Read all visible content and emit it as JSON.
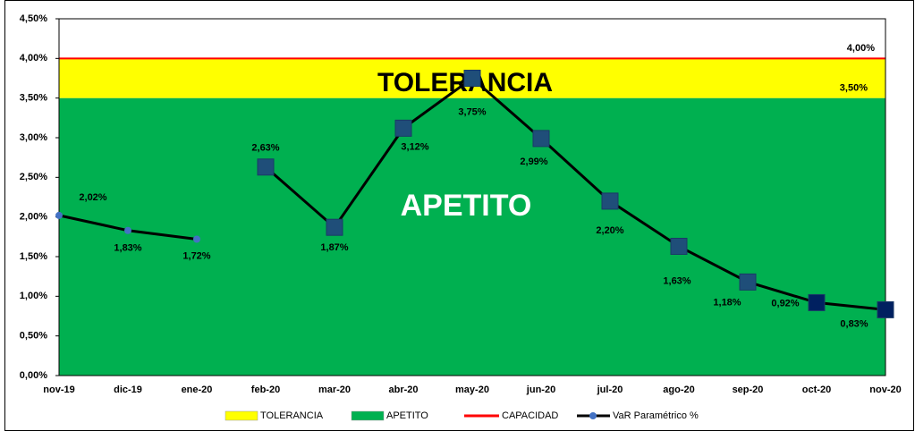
{
  "chart_data": {
    "type": "line",
    "categories": [
      "nov-19",
      "dic-19",
      "ene-20",
      "feb-20",
      "mar-20",
      "abr-20",
      "may-20",
      "jun-20",
      "jul-20",
      "ago-20",
      "sep-20",
      "oct-20",
      "nov-20"
    ],
    "series": [
      {
        "name": "VaR Paramétrico %",
        "color": "#000000",
        "values": [
          2.02,
          1.83,
          1.72,
          2.63,
          1.87,
          3.12,
          3.75,
          2.99,
          2.2,
          1.63,
          1.18,
          0.92,
          0.83
        ],
        "value_labels": [
          "2,02%",
          "1,83%",
          "1,72%",
          "2,63%",
          "1,87%",
          "3,12%",
          "3,75%",
          "2,99%",
          "2,20%",
          "1,63%",
          "1,18%",
          "0,92%",
          "0,83%"
        ],
        "markers": [
          "circle",
          "circle",
          "circle",
          "square",
          "square",
          "square",
          "square",
          "square",
          "square",
          "square",
          "square",
          "square",
          "square"
        ],
        "marker_colors": [
          "#4472c4",
          "#4472c4",
          "#4472c4",
          "#1f4e79",
          "#1f4e79",
          "#1f4e79",
          "#1f4e79",
          "#1f4e79",
          "#1f4e79",
          "#1f4e79",
          "#1f4e79",
          "#002060",
          "#002060"
        ],
        "line_breaks": [
          2
        ]
      }
    ],
    "apetito": {
      "name": "APETITO",
      "color": "#00b050",
      "value": 3.5,
      "label": "3,50%"
    },
    "tolerancia": {
      "name": "TOLERANCIA",
      "color": "#ffff00"
    },
    "capacidad": {
      "name": "CAPACIDAD",
      "color": "#ff0000",
      "value": 4,
      "label": "4,00%"
    },
    "ylim": [
      0,
      4.5
    ],
    "yticks": [
      {
        "value": 0,
        "label": "0,00%"
      },
      {
        "value": 0.5,
        "label": "0,50%"
      },
      {
        "value": 1,
        "label": "1,00%"
      },
      {
        "value": 1.5,
        "label": "1,50%"
      },
      {
        "value": 2,
        "label": "2,00%"
      },
      {
        "value": 2.5,
        "label": "2,50%"
      },
      {
        "value": 3,
        "label": "3,00%"
      },
      {
        "value": 3.5,
        "label": "3,50%"
      },
      {
        "value": 4,
        "label": "4,00%"
      },
      {
        "value": 4.5,
        "label": "4,50%"
      }
    ]
  }
}
